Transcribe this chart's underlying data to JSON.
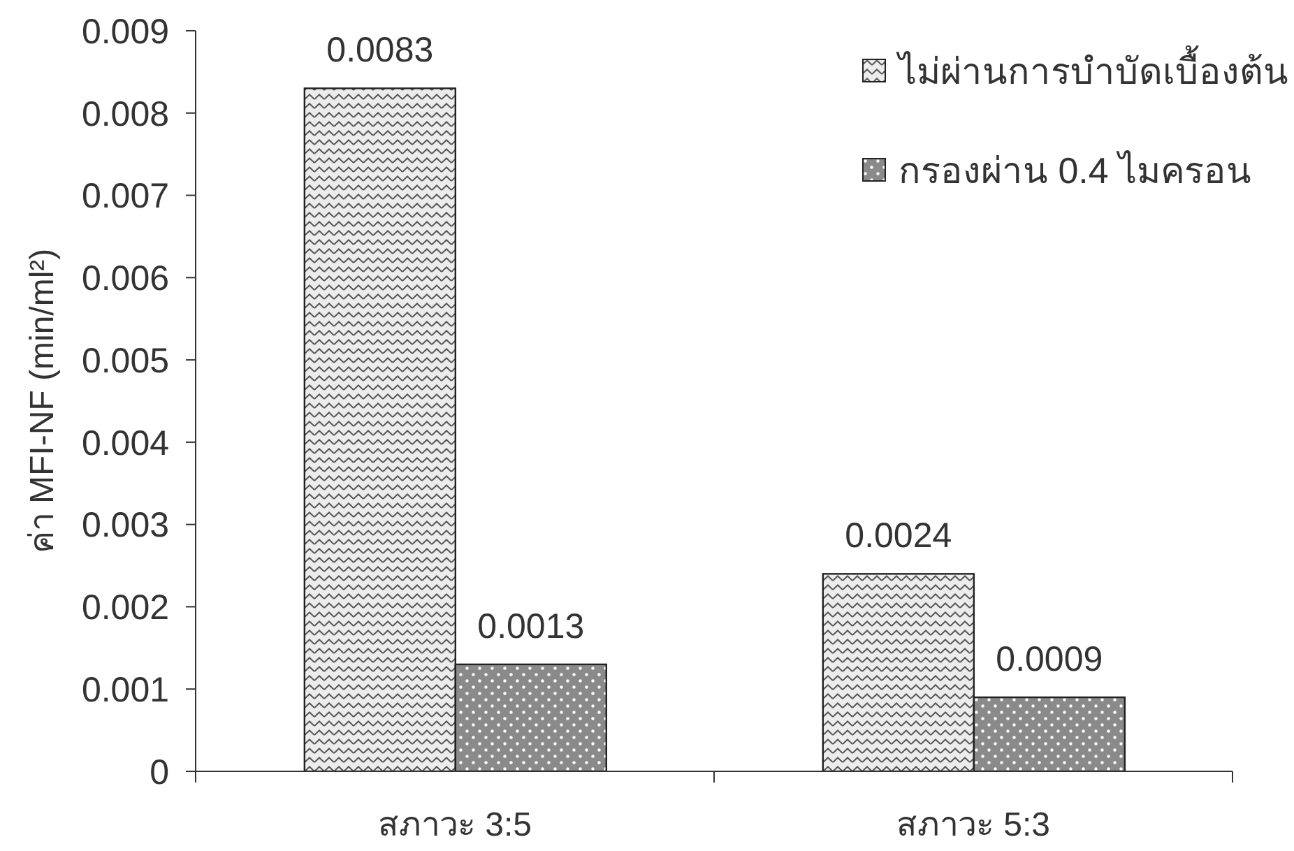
{
  "chart_data": {
    "type": "bar",
    "ylabel": "ค่า MFI-NF (min/ml²)",
    "categories": [
      "สภาวะ 3:5",
      "สภาวะ 5:3"
    ],
    "series": [
      {
        "name": "ไม่ผ่านการบำบัดเบื้องต้น",
        "color": "#ececec",
        "values": [
          0.0083,
          0.0024
        ]
      },
      {
        "name": "กรองผ่าน 0.4 ไมครอน",
        "color": "#8a8a8a",
        "values": [
          0.0013,
          0.0009
        ]
      }
    ],
    "ylim": [
      0,
      0.009
    ],
    "yticks": [
      0,
      0.001,
      0.002,
      0.003,
      0.004,
      0.005,
      0.006,
      0.007,
      0.008,
      0.009
    ],
    "data_labels": true,
    "legend": "top right",
    "grid": false
  }
}
